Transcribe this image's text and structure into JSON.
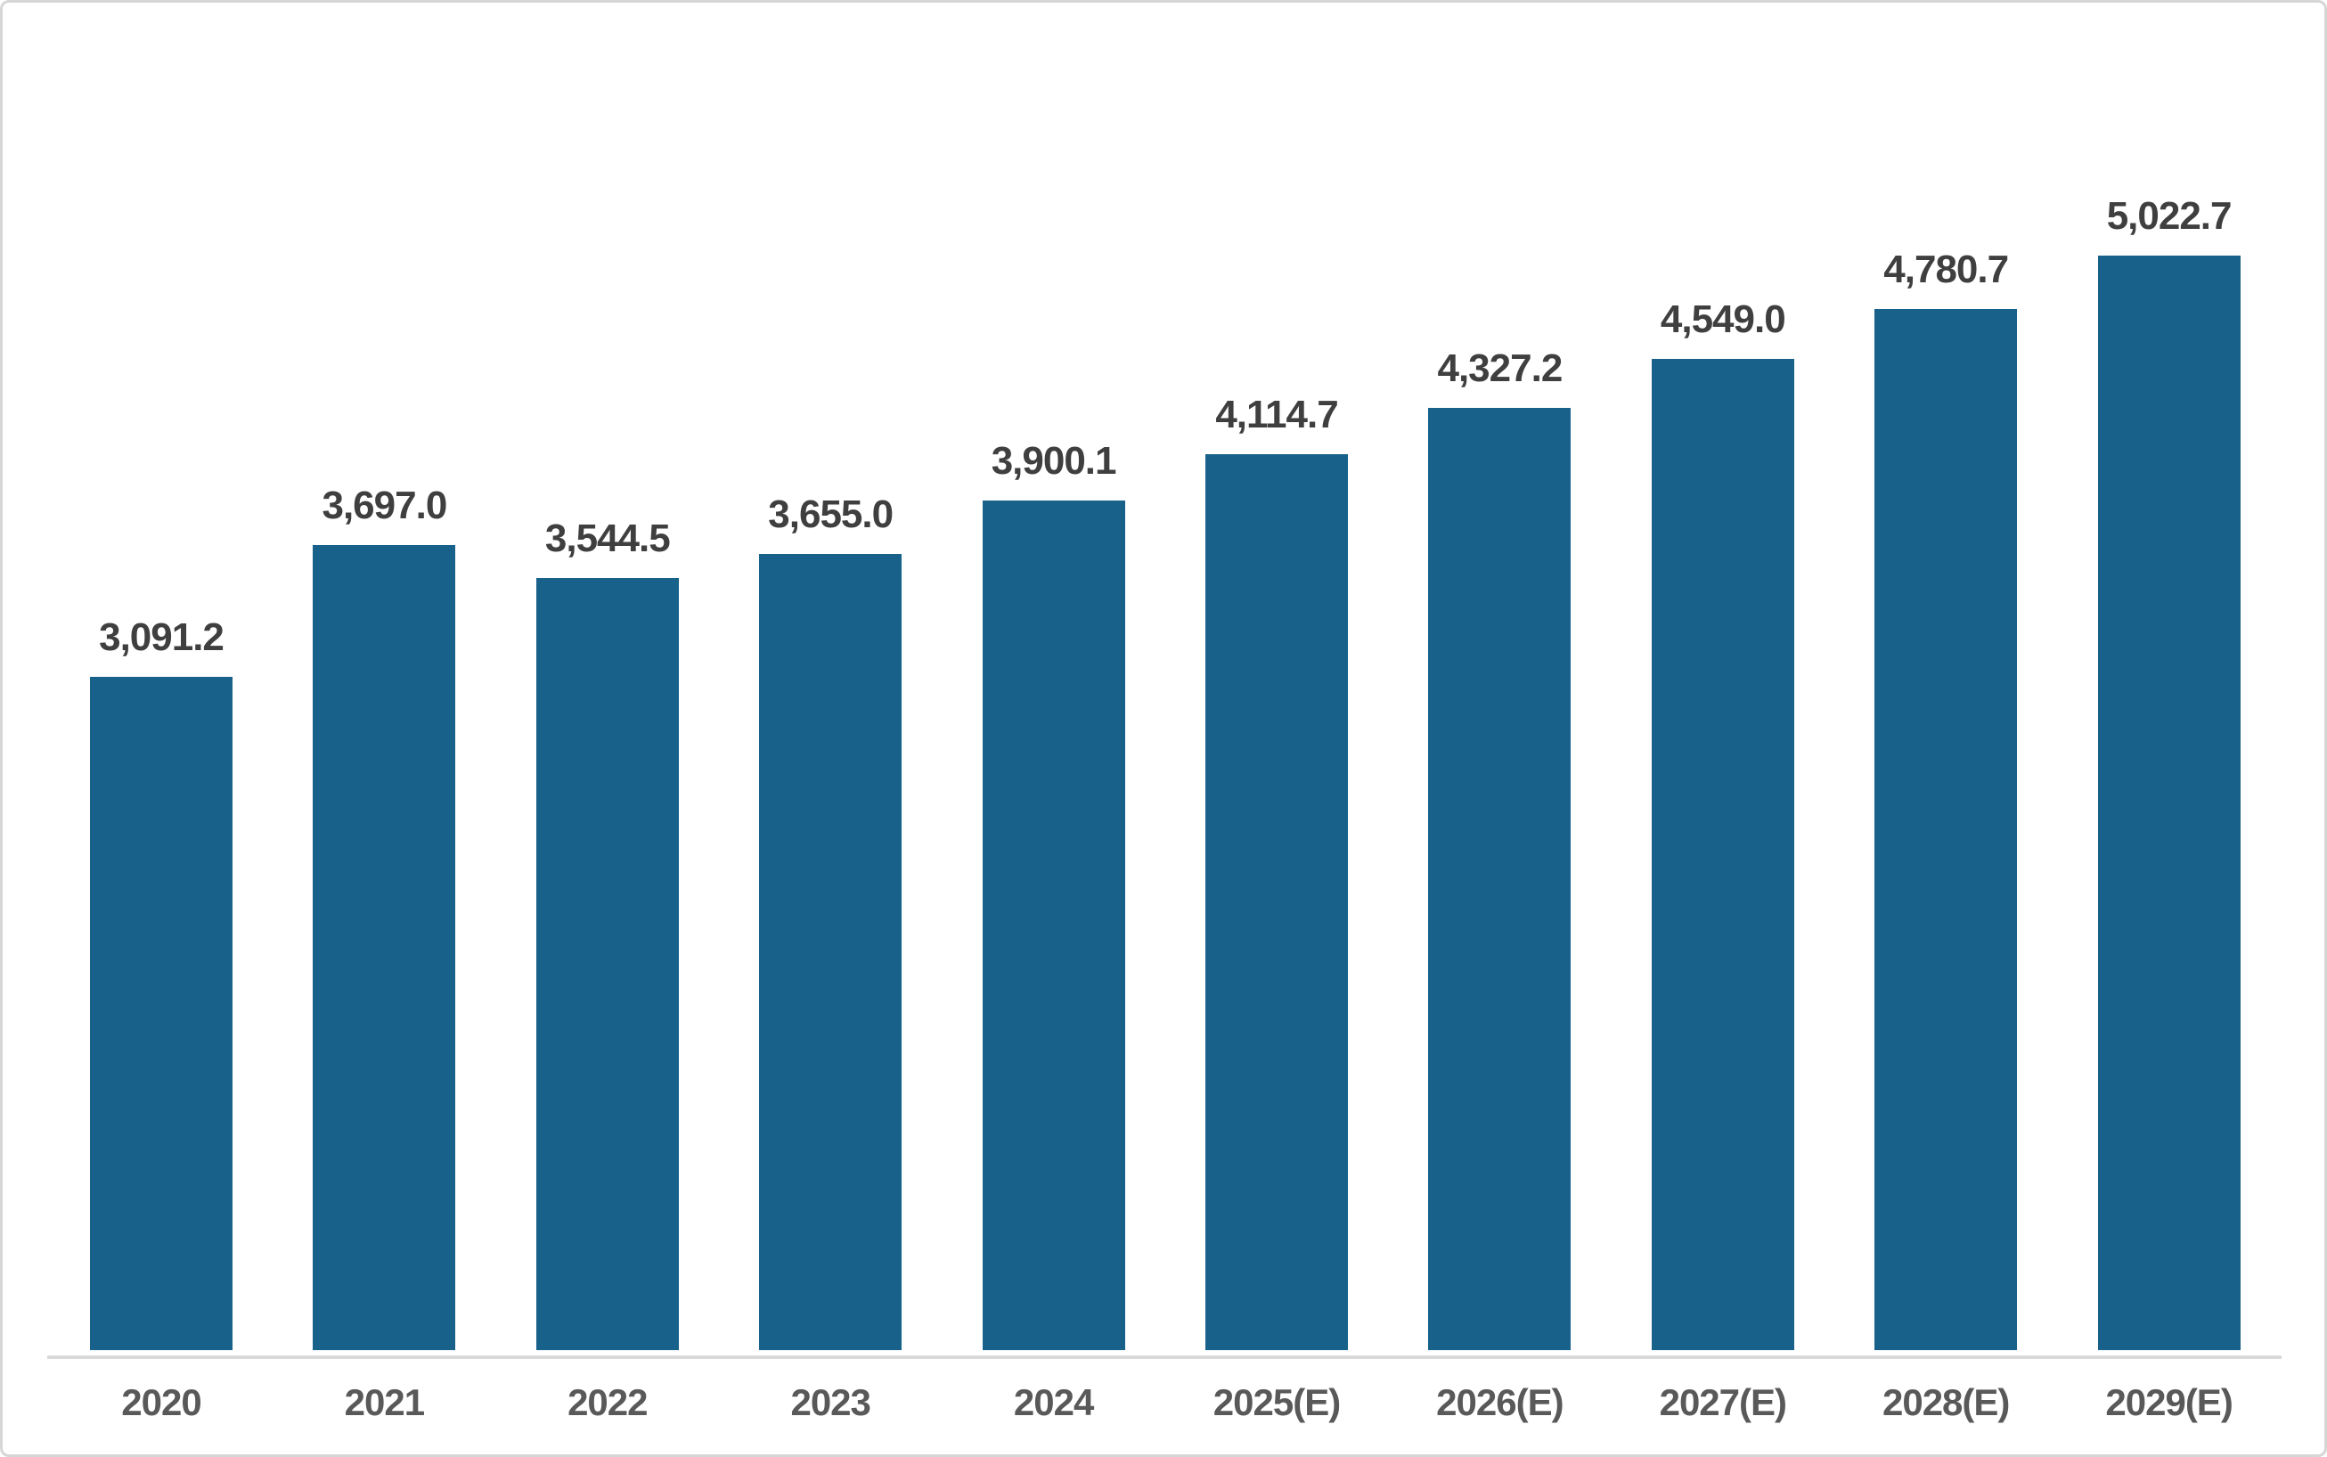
{
  "chart_data": {
    "type": "bar",
    "title": "",
    "xlabel": "",
    "ylabel": "",
    "categories": [
      "2020",
      "2021",
      "2022",
      "2023",
      "2024",
      "2025(E)",
      "2026(E)",
      "2027(E)",
      "2028(E)",
      "2029(E)"
    ],
    "values": [
      3091.2,
      3697.0,
      3544.5,
      3655.0,
      3900.1,
      4114.7,
      4327.2,
      4549.0,
      4780.7,
      5022.7
    ],
    "value_labels": [
      "3,091.2",
      "3,697.0",
      "3,544.5",
      "3,655.0",
      "3,900.1",
      "4,114.7",
      "4,327.2",
      "4,549.0",
      "4,780.7",
      "5,022.7"
    ],
    "ylim": [
      0,
      6210
    ],
    "grid": false,
    "legend": null,
    "bar_color": "#17618a",
    "value_label_color": "#3f3f3f",
    "category_label_color": "#595959",
    "axis_line_color": "#d9d9d9"
  }
}
